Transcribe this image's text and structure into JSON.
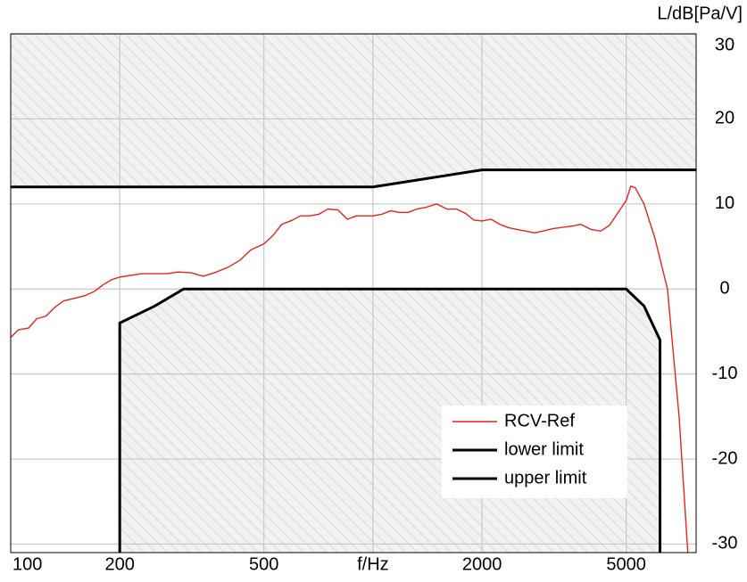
{
  "chart_data": {
    "type": "line",
    "y_label": "L/dB[Pa/V]",
    "xscale": "log",
    "xlim": [
      100,
      7800
    ],
    "ylim": [
      -31,
      30
    ],
    "xticks": [
      100,
      200,
      500,
      {
        "value": 1000,
        "label": "f/Hz"
      },
      2000,
      5000
    ],
    "yticks": [
      30,
      20,
      10,
      0,
      -10,
      -20,
      -30
    ],
    "grid": true,
    "legend": "lower right",
    "hatch_limits": true,
    "series": [
      {
        "name": "RCV-Ref",
        "color": "#e8231e",
        "width": 1.4,
        "x": [
          100,
          105,
          112,
          118,
          125,
          132,
          140,
          150,
          160,
          170,
          180,
          190,
          200,
          215,
          230,
          250,
          270,
          290,
          315,
          340,
          370,
          400,
          430,
          460,
          500,
          530,
          560,
          600,
          630,
          670,
          710,
          750,
          800,
          850,
          900,
          1000,
          1060,
          1120,
          1180,
          1250,
          1320,
          1400,
          1500,
          1600,
          1700,
          1800,
          1900,
          2000,
          2120,
          2240,
          2370,
          2500,
          2800,
          3150,
          3550,
          3750,
          4000,
          4250,
          4500,
          4750,
          5000,
          5150,
          5300,
          5600,
          6000,
          6500,
          7000,
          7400
        ],
        "values": [
          -5.7,
          -4.8,
          -4.6,
          -3.5,
          -3.2,
          -2.2,
          -1.4,
          -1.1,
          -0.8,
          -0.3,
          0.5,
          1.1,
          1.4,
          1.6,
          1.8,
          1.8,
          1.8,
          2.0,
          1.9,
          1.5,
          2.0,
          2.6,
          3.4,
          4.6,
          5.3,
          6.3,
          7.6,
          8.1,
          8.6,
          8.6,
          8.8,
          9.4,
          9.3,
          8.2,
          8.6,
          8.6,
          8.8,
          9.2,
          9.0,
          9.0,
          9.4,
          9.6,
          10.0,
          9.4,
          9.4,
          8.9,
          8.1,
          8.0,
          8.2,
          7.6,
          7.2,
          7.0,
          6.6,
          7.1,
          7.4,
          7.6,
          7.0,
          6.8,
          7.5,
          9.0,
          10.4,
          12.1,
          11.9,
          10.0,
          6.0,
          0,
          -15,
          -31
        ]
      },
      {
        "name": "lower limit",
        "color": "#000000",
        "width": 3,
        "x": [
          200,
          200,
          250,
          300,
          5000,
          5600,
          6200,
          6200
        ],
        "values": [
          -31,
          -4,
          -2,
          0,
          0,
          -2,
          -6,
          -31
        ]
      },
      {
        "name": "upper limit",
        "color": "#000000",
        "width": 3,
        "x": [
          100,
          1000,
          2000,
          7800
        ],
        "values": [
          12,
          12,
          14,
          14
        ]
      }
    ]
  }
}
